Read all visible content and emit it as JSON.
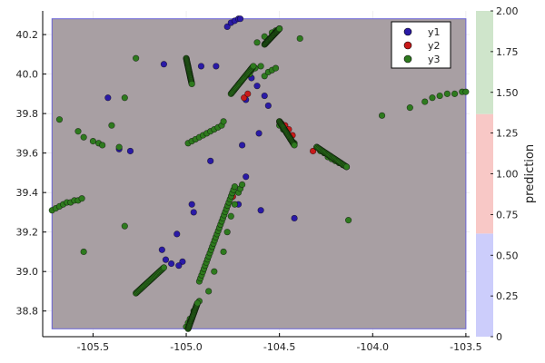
{
  "chart_data": {
    "type": "scatter",
    "title": "",
    "xlabel": "",
    "ylabel": "",
    "xlim": [
      -105.77,
      -103.48
    ],
    "ylim": [
      38.67,
      40.32
    ],
    "xticks": [
      {
        "value": -105.5,
        "label": "-105.5"
      },
      {
        "value": -105.0,
        "label": "-105.0"
      },
      {
        "value": -104.5,
        "label": "-104.5"
      },
      {
        "value": -104.0,
        "label": "-104.0"
      },
      {
        "value": -103.5,
        "label": "-103.5"
      }
    ],
    "yticks": [
      {
        "value": 38.8,
        "label": "38.8"
      },
      {
        "value": 39.0,
        "label": "39.0"
      },
      {
        "value": 39.2,
        "label": "39.2"
      },
      {
        "value": 39.4,
        "label": "39.4"
      },
      {
        "value": 39.6,
        "label": "39.6"
      },
      {
        "value": 39.8,
        "label": "39.8"
      },
      {
        "value": 40.0,
        "label": "40.0"
      },
      {
        "value": 40.2,
        "label": "40.2"
      }
    ],
    "grid": true,
    "legend_position": "top-right",
    "background_region": {
      "x": [
        -105.72,
        -103.5
      ],
      "y": [
        38.71,
        40.28
      ],
      "fill_color": "#a89fa3",
      "edge_color": "#6a63d6"
    },
    "series": [
      {
        "name": "y1",
        "color": "#2a1aa6",
        "x": [
          -105.42,
          -105.36,
          -105.3,
          -105.12,
          -105.05,
          -104.97,
          -104.92,
          -104.87,
          -104.84,
          -104.78,
          -104.76,
          -104.74,
          -104.72,
          -104.71,
          -104.7,
          -104.68,
          -104.65,
          -104.62,
          -104.58,
          -104.56,
          -104.42,
          -104.72,
          -104.6,
          -104.96,
          -105.02,
          -105.04,
          -105.08,
          -105.11,
          -105.13,
          -104.61,
          -104.68
        ],
        "y": [
          39.88,
          39.62,
          39.61,
          40.05,
          39.19,
          39.34,
          40.04,
          39.56,
          40.04,
          40.24,
          40.26,
          40.27,
          40.28,
          40.28,
          39.64,
          39.87,
          39.98,
          39.94,
          39.89,
          39.84,
          39.27,
          39.34,
          39.31,
          39.3,
          39.05,
          39.03,
          39.04,
          39.06,
          39.11,
          39.7,
          39.48
        ]
      },
      {
        "name": "y2",
        "color": "#c81a1a",
        "x": [
          -104.5,
          -104.49,
          -104.47,
          -104.45,
          -104.43,
          -104.32,
          -104.69,
          -104.67,
          -104.75
        ],
        "y": [
          39.76,
          39.75,
          39.74,
          39.72,
          39.69,
          39.61,
          39.88,
          39.9,
          39.38
        ]
      },
      {
        "name": "y3",
        "color": "#2e7a1e",
        "x": [
          -105.72,
          -105.7,
          -105.68,
          -105.66,
          -105.64,
          -105.62,
          -105.6,
          -105.58,
          -105.56,
          -105.68,
          -105.58,
          -105.55,
          -105.5,
          -105.47,
          -105.45,
          -105.4,
          -105.36,
          -105.33,
          -105.27,
          -104.99,
          -104.97,
          -104.95,
          -104.93,
          -104.91,
          -104.89,
          -104.87,
          -104.85,
          -104.83,
          -104.81,
          -104.8,
          -105.0,
          -104.99,
          -104.98,
          -104.96,
          -104.93,
          -104.88,
          -104.85,
          -104.8,
          -104.78,
          -104.76,
          -104.74,
          -104.72,
          -104.71,
          -104.7,
          -104.66,
          -104.65,
          -104.63,
          -104.6,
          -104.58,
          -104.56,
          -104.54,
          -104.52,
          -104.5,
          -104.48,
          -104.46,
          -104.44,
          -104.42,
          -104.3,
          -104.28,
          -104.26,
          -104.24,
          -104.22,
          -104.2,
          -104.18,
          -104.16,
          -104.14,
          -103.95,
          -103.8,
          -103.72,
          -103.68,
          -103.64,
          -103.6,
          -103.56,
          -103.52,
          -103.5,
          -104.62,
          -104.58,
          -104.54,
          -104.52,
          -104.5,
          -104.39,
          -104.13,
          -105.33,
          -105.55
        ],
        "y": [
          39.31,
          39.32,
          39.33,
          39.34,
          39.35,
          39.35,
          39.36,
          39.36,
          39.37,
          39.77,
          39.71,
          39.68,
          39.66,
          39.65,
          39.64,
          39.74,
          39.63,
          39.88,
          40.08,
          39.65,
          39.66,
          39.67,
          39.68,
          39.69,
          39.7,
          39.71,
          39.72,
          39.73,
          39.74,
          39.76,
          38.72,
          38.74,
          38.76,
          38.8,
          38.85,
          38.9,
          39.0,
          39.1,
          39.2,
          39.28,
          39.34,
          39.4,
          39.42,
          39.44,
          40.0,
          40.02,
          40.03,
          40.04,
          39.99,
          40.01,
          40.02,
          40.03,
          39.74,
          39.72,
          39.7,
          39.67,
          39.65,
          39.63,
          39.61,
          39.6,
          39.58,
          39.57,
          39.56,
          39.55,
          39.54,
          39.53,
          39.79,
          39.83,
          39.86,
          39.88,
          39.89,
          39.9,
          39.9,
          39.91,
          39.91,
          40.16,
          40.19,
          40.21,
          40.22,
          40.23,
          40.18,
          39.26,
          39.23,
          39.1
        ]
      }
    ],
    "extra_segments_y3": [
      {
        "x": [
          -105.27,
          -105.12
        ],
        "y": [
          38.89,
          39.02
        ]
      },
      {
        "x": [
          -104.93,
          -104.74
        ],
        "y": [
          38.95,
          39.43
        ]
      },
      {
        "x": [
          -104.99,
          -104.94
        ],
        "y": [
          38.71,
          38.84
        ]
      },
      {
        "x": [
          -104.76,
          -104.64
        ],
        "y": [
          39.9,
          40.04
        ]
      },
      {
        "x": [
          -104.3,
          -104.14
        ],
        "y": [
          39.63,
          39.53
        ]
      },
      {
        "x": [
          -104.5,
          -104.42
        ],
        "y": [
          39.76,
          39.64
        ]
      },
      {
        "x": [
          -104.58,
          -104.5
        ],
        "y": [
          40.15,
          40.23
        ]
      },
      {
        "x": [
          -105.0,
          -104.97
        ],
        "y": [
          40.08,
          39.95
        ]
      }
    ],
    "colorbar": {
      "label": "prediction",
      "range": [
        0,
        2
      ],
      "ticks": [
        {
          "value": 0,
          "label": "0"
        },
        {
          "value": 0.25,
          "label": "0.25"
        },
        {
          "value": 0.5,
          "label": "0.50"
        },
        {
          "value": 0.75,
          "label": "0.75"
        },
        {
          "value": 1.0,
          "label": "1.00"
        },
        {
          "value": 1.25,
          "label": "1.25"
        },
        {
          "value": 1.5,
          "label": "1.50"
        },
        {
          "value": 1.75,
          "label": "1.75"
        },
        {
          "value": 2.0,
          "label": "2.00"
        }
      ],
      "bands": [
        {
          "from": 0,
          "to": 0.6333,
          "color": "#cccdfb"
        },
        {
          "from": 0.6333,
          "to": 1.3667,
          "color": "#f8c8c6"
        },
        {
          "from": 1.3667,
          "to": 2.0,
          "color": "#cfe5cb"
        }
      ]
    }
  }
}
